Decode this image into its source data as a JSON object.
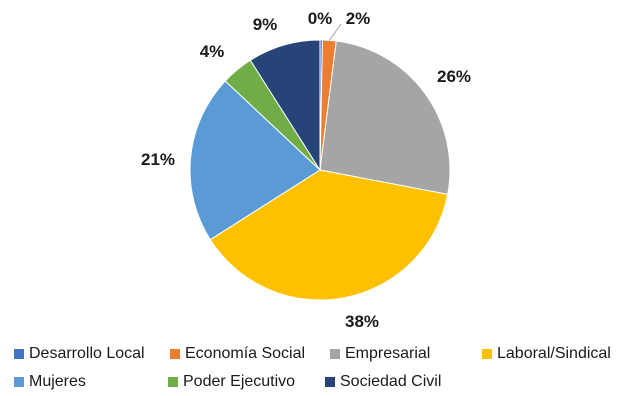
{
  "chart_data": {
    "type": "pie",
    "categories": [
      "Desarrollo Local",
      "Economía Social",
      "Empresarial",
      "Laboral/Sindical",
      "Mujeres",
      "Poder Ejecutivo",
      "Sociedad Civil"
    ],
    "values": [
      0.3,
      1.7,
      26,
      38,
      21,
      4,
      9
    ],
    "data_labels": [
      "0%",
      "2%",
      "26%",
      "38%",
      "21%",
      "4%",
      "9%"
    ],
    "colors": [
      "#4472C4",
      "#ED7D31",
      "#A5A5A5",
      "#FFC000",
      "#5B9BD5",
      "#70AD47",
      "#264478"
    ],
    "start_angle_deg": 0,
    "direction": "clockwise",
    "legend_position": "bottom",
    "title": ""
  },
  "legend": {
    "rows": [
      [
        {
          "label": "Desarrollo Local",
          "color": "#4472C4"
        },
        {
          "label": "Economía Social",
          "color": "#ED7D31"
        },
        {
          "label": "Empresarial",
          "color": "#A5A5A5"
        },
        {
          "label": "Laboral/Sindical",
          "color": "#FFC000"
        }
      ],
      [
        {
          "label": "Mujeres",
          "color": "#5B9BD5"
        },
        {
          "label": "Poder Ejecutivo",
          "color": "#70AD47"
        },
        {
          "label": "Sociedad Civil",
          "color": "#264478"
        }
      ]
    ]
  }
}
